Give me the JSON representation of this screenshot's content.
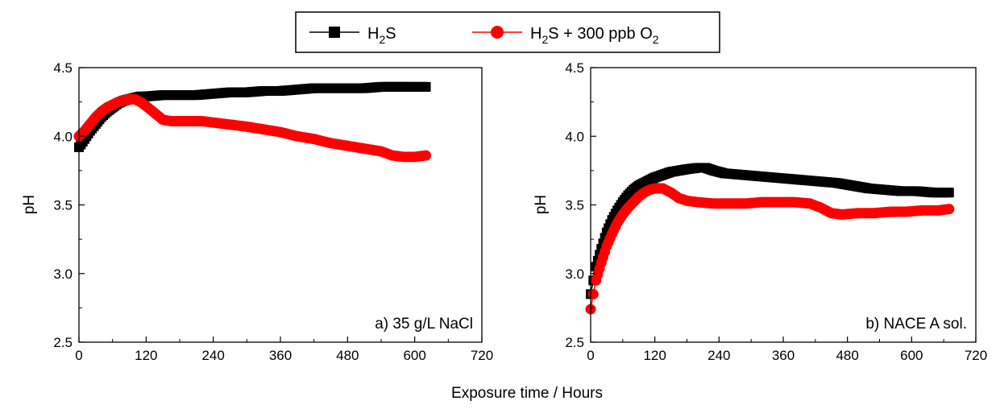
{
  "legend": {
    "entries": [
      {
        "name": "H2S",
        "label": "H",
        "sub": "2",
        "label2": "S",
        "color": "#000000",
        "marker": "square"
      },
      {
        "name": "H2S + 300 ppb O2",
        "label": "H",
        "sub": "2",
        "label2": "S + 300 ppb O",
        "sub2": "2",
        "color": "#ff0000",
        "marker": "circle"
      }
    ]
  },
  "xlabel": "Exposure time / Hours",
  "chart_data": [
    {
      "type": "line",
      "annotation": "a) 35 g/L NaCl",
      "ylabel": "pH",
      "xlim": [
        0,
        720
      ],
      "ylim": [
        2.5,
        4.5
      ],
      "xticks": [
        "0",
        "120",
        "240",
        "360",
        "480",
        "600",
        "720"
      ],
      "yticks": [
        "2.5",
        "3.0",
        "3.5",
        "4.0",
        "4.5"
      ],
      "series": [
        {
          "name": "H2S",
          "color": "#000000",
          "marker": "square",
          "x": [
            0,
            10,
            20,
            30,
            40,
            50,
            60,
            70,
            80,
            90,
            100,
            110,
            120,
            150,
            180,
            210,
            240,
            270,
            300,
            330,
            360,
            390,
            420,
            450,
            480,
            510,
            540,
            570,
            600,
            620
          ],
          "y": [
            3.92,
            3.98,
            4.04,
            4.09,
            4.14,
            4.18,
            4.21,
            4.24,
            4.26,
            4.27,
            4.28,
            4.29,
            4.29,
            4.3,
            4.3,
            4.3,
            4.31,
            4.32,
            4.32,
            4.33,
            4.33,
            4.34,
            4.35,
            4.35,
            4.35,
            4.35,
            4.36,
            4.36,
            4.36,
            4.36
          ]
        },
        {
          "name": "H2S + 300 ppb O2",
          "color": "#ff0000",
          "marker": "circle",
          "x": [
            0,
            10,
            20,
            30,
            40,
            50,
            60,
            70,
            80,
            90,
            100,
            110,
            120,
            135,
            150,
            165,
            180,
            200,
            220,
            240,
            260,
            280,
            300,
            330,
            360,
            390,
            420,
            450,
            480,
            510,
            540,
            560,
            580,
            600,
            620
          ],
          "y": [
            4.0,
            4.04,
            4.09,
            4.14,
            4.18,
            4.21,
            4.23,
            4.25,
            4.26,
            4.27,
            4.27,
            4.25,
            4.22,
            4.17,
            4.12,
            4.11,
            4.11,
            4.11,
            4.11,
            4.1,
            4.09,
            4.08,
            4.07,
            4.05,
            4.03,
            4.0,
            3.98,
            3.95,
            3.93,
            3.91,
            3.89,
            3.86,
            3.85,
            3.85,
            3.86
          ]
        }
      ]
    },
    {
      "type": "line",
      "annotation": "b) NACE A sol.",
      "ylabel": "pH",
      "xlim": [
        0,
        720
      ],
      "ylim": [
        2.5,
        4.5
      ],
      "xticks": [
        "0",
        "120",
        "240",
        "360",
        "480",
        "600",
        "720"
      ],
      "yticks": [
        "2.5",
        "3.0",
        "3.5",
        "4.0",
        "4.5"
      ],
      "series": [
        {
          "name": "H2S",
          "color": "#000000",
          "marker": "square",
          "x": [
            0,
            5,
            10,
            20,
            30,
            40,
            50,
            60,
            70,
            80,
            90,
            100,
            110,
            120,
            135,
            150,
            165,
            180,
            200,
            215,
            230,
            250,
            280,
            310,
            340,
            370,
            400,
            430,
            460,
            490,
            520,
            550,
            580,
            610,
            640,
            670
          ],
          "y": [
            2.85,
            2.95,
            3.05,
            3.18,
            3.3,
            3.39,
            3.46,
            3.52,
            3.57,
            3.61,
            3.64,
            3.66,
            3.68,
            3.7,
            3.72,
            3.74,
            3.75,
            3.76,
            3.77,
            3.77,
            3.75,
            3.73,
            3.72,
            3.71,
            3.7,
            3.69,
            3.68,
            3.67,
            3.66,
            3.64,
            3.62,
            3.61,
            3.6,
            3.6,
            3.59,
            3.59
          ]
        },
        {
          "name": "H2S + 300 ppb O2",
          "color": "#ff0000",
          "marker": "circle",
          "x": [
            0,
            5,
            10,
            20,
            30,
            40,
            50,
            60,
            70,
            80,
            90,
            100,
            110,
            120,
            135,
            150,
            165,
            180,
            200,
            230,
            260,
            290,
            320,
            350,
            380,
            410,
            430,
            450,
            470,
            500,
            530,
            560,
            590,
            620,
            650,
            670
          ],
          "y": [
            2.74,
            2.85,
            2.95,
            3.08,
            3.2,
            3.29,
            3.37,
            3.43,
            3.48,
            3.52,
            3.56,
            3.59,
            3.61,
            3.62,
            3.62,
            3.59,
            3.55,
            3.53,
            3.52,
            3.51,
            3.51,
            3.51,
            3.52,
            3.52,
            3.52,
            3.51,
            3.48,
            3.44,
            3.43,
            3.44,
            3.44,
            3.45,
            3.45,
            3.46,
            3.46,
            3.47
          ]
        }
      ]
    }
  ]
}
